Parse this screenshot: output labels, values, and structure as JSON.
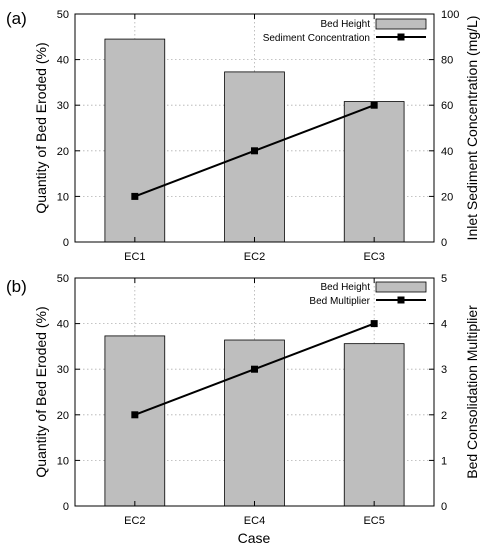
{
  "figure": {
    "xlabel": "Case"
  },
  "chart_data": [
    {
      "type": "bar",
      "panel_label": "(a)",
      "categories": [
        "EC1",
        "EC2",
        "EC3"
      ],
      "ylabel": "Quantity of Bed Eroded (%)",
      "y2label": "Inlet Sediment Concentration (mg/L)",
      "ylim": [
        0,
        50
      ],
      "y2lim": [
        0,
        100
      ],
      "yticks": [
        0,
        10,
        20,
        30,
        40,
        50
      ],
      "y2ticks": [
        0,
        20,
        40,
        60,
        80,
        100
      ],
      "grid": true,
      "legend_position": "top-right",
      "series": [
        {
          "name": "Bed Height",
          "kind": "bar",
          "axis": "left",
          "color": "#bebebe",
          "values": [
            44.5,
            37.3,
            30.8
          ]
        },
        {
          "name": "Sediment Concentration",
          "kind": "line",
          "axis": "right",
          "color": "#000000",
          "values": [
            20,
            40,
            60
          ]
        }
      ]
    },
    {
      "type": "bar",
      "panel_label": "(b)",
      "categories": [
        "EC2",
        "EC4",
        "EC5"
      ],
      "ylabel": "Quantity of Bed Eroded (%)",
      "y2label": "Bed Consolidation Multiplier",
      "ylim": [
        0,
        50
      ],
      "y2lim": [
        0,
        5
      ],
      "yticks": [
        0,
        10,
        20,
        30,
        40,
        50
      ],
      "y2ticks": [
        0,
        1,
        2,
        3,
        4,
        5
      ],
      "grid": true,
      "legend_position": "top-right",
      "series": [
        {
          "name": "Bed Height",
          "kind": "bar",
          "axis": "left",
          "color": "#bebebe",
          "values": [
            37.3,
            36.4,
            35.6
          ]
        },
        {
          "name": "Bed Multiplier",
          "kind": "line",
          "axis": "right",
          "color": "#000000",
          "values": [
            2,
            3,
            4
          ]
        }
      ]
    }
  ]
}
